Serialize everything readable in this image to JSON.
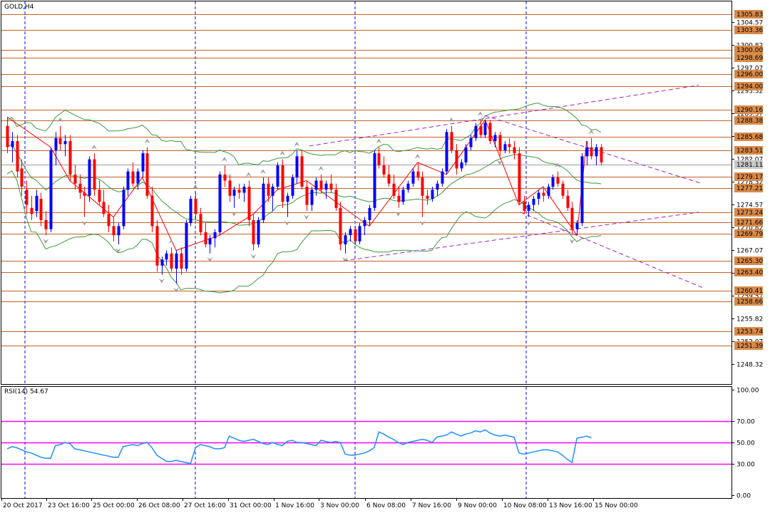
{
  "chart_data": [
    {
      "type": "candlestick",
      "title": "GOLD,H4",
      "ylim": [
        1245,
        1308
      ],
      "y_ticks": [
        "1304.57",
        "1300.82",
        "1297.07",
        "1293.32",
        "1289.57",
        "1285.82",
        "1282.07",
        "1278.32",
        "1274.57",
        "1270.82",
        "1267.07",
        "1263.32",
        "1259.57",
        "1255.82",
        "1252.07",
        "1248.32"
      ],
      "x_ticks": [
        "20 Oct 2017",
        "23 Oct 16:00",
        "25 Oct 00:00",
        "26 Oct 08:00",
        "27 Oct 16:00",
        "31 Oct 00:00",
        "1 Nov 16:00",
        "3 Nov 00:00",
        "6 Nov 08:00",
        "7 Nov 16:00",
        "9 Nov 00:00",
        "10 Nov 08:00",
        "13 Nov 16:00",
        "15 Nov 00:00"
      ],
      "horizontal_levels": [
        "1305.83",
        "1303.36",
        "1300.00",
        "1298.69",
        "1296.00",
        "1294.00",
        "1290.16",
        "1288.38",
        "1285.68",
        "1283.51",
        "1279.17",
        "1277.21",
        "1273.24",
        "1271.66",
        "1269.79",
        "1265.30",
        "1263.40",
        "1260.41",
        "1258.66",
        "1253.74",
        "1251.39"
      ],
      "current_price": "1281.11",
      "colors": {
        "bull": "#0000ff",
        "bear": "#ff0000",
        "level": "#c0622a",
        "bollinger": "#3a9a3a",
        "zigzag": "#ff0000",
        "channel": "#a020c0",
        "separator": "#0000ff"
      },
      "candles_ohlc": [
        [
          1287.5,
          1289.0,
          1283.0,
          1284.0
        ],
        [
          1284.0,
          1286.5,
          1281.5,
          1285.0
        ],
        [
          1285.0,
          1286.0,
          1279.0,
          1280.0
        ],
        [
          1280.5,
          1282.0,
          1276.0,
          1277.5
        ],
        [
          1277.0,
          1278.5,
          1273.0,
          1274.5
        ],
        [
          1274.0,
          1276.0,
          1272.0,
          1273.0
        ],
        [
          1273.5,
          1277.0,
          1272.5,
          1276.0
        ],
        [
          1275.5,
          1276.5,
          1271.0,
          1272.0
        ],
        [
          1272.0,
          1273.5,
          1269.5,
          1270.5
        ],
        [
          1270.5,
          1284.0,
          1270.0,
          1283.5
        ],
        [
          1283.5,
          1286.5,
          1281.0,
          1285.5
        ],
        [
          1285.5,
          1287.5,
          1283.5,
          1284.5
        ],
        [
          1284.5,
          1286.0,
          1282.5,
          1285.0
        ],
        [
          1285.0,
          1286.0,
          1278.5,
          1279.5
        ],
        [
          1279.5,
          1281.0,
          1277.0,
          1278.0
        ],
        [
          1278.0,
          1279.5,
          1275.5,
          1276.5
        ],
        [
          1276.5,
          1277.5,
          1272.5,
          1276.0
        ],
        [
          1276.0,
          1282.5,
          1275.0,
          1282.0
        ],
        [
          1282.0,
          1283.0,
          1276.0,
          1277.0
        ],
        [
          1277.0,
          1278.5,
          1274.5,
          1275.0
        ],
        [
          1275.0,
          1277.0,
          1272.5,
          1273.0
        ],
        [
          1273.0,
          1274.5,
          1270.0,
          1271.0
        ],
        [
          1271.0,
          1272.5,
          1268.5,
          1269.5
        ],
        [
          1269.5,
          1271.5,
          1268.0,
          1271.0
        ],
        [
          1271.0,
          1277.5,
          1270.5,
          1277.0
        ],
        [
          1277.0,
          1280.5,
          1276.0,
          1280.0
        ],
        [
          1280.0,
          1281.5,
          1277.5,
          1278.0
        ],
        [
          1278.0,
          1280.5,
          1277.0,
          1280.0
        ],
        [
          1280.0,
          1283.5,
          1279.0,
          1283.0
        ],
        [
          1283.0,
          1284.0,
          1275.5,
          1276.0
        ],
        [
          1276.0,
          1277.5,
          1270.0,
          1271.0
        ],
        [
          1271.0,
          1272.0,
          1263.5,
          1264.5
        ],
        [
          1264.5,
          1266.0,
          1263.0,
          1265.5
        ],
        [
          1265.5,
          1267.0,
          1264.5,
          1266.5
        ],
        [
          1266.5,
          1267.5,
          1263.5,
          1264.0
        ],
        [
          1264.0,
          1267.0,
          1261.5,
          1266.5
        ],
        [
          1266.5,
          1267.5,
          1263.0,
          1264.0
        ],
        [
          1264.0,
          1272.0,
          1263.5,
          1271.5
        ],
        [
          1271.5,
          1276.0,
          1271.0,
          1275.5
        ],
        [
          1275.5,
          1276.5,
          1272.0,
          1273.0
        ],
        [
          1273.0,
          1274.0,
          1269.5,
          1270.0
        ],
        [
          1270.0,
          1271.5,
          1267.5,
          1268.0
        ],
        [
          1268.0,
          1269.5,
          1266.5,
          1269.0
        ],
        [
          1269.0,
          1270.5,
          1267.5,
          1270.0
        ],
        [
          1270.0,
          1280.0,
          1269.5,
          1279.5
        ],
        [
          1279.5,
          1281.0,
          1277.5,
          1278.5
        ],
        [
          1278.5,
          1279.5,
          1275.0,
          1276.0
        ],
        [
          1276.0,
          1277.5,
          1274.0,
          1277.0
        ],
        [
          1277.0,
          1278.0,
          1275.5,
          1276.5
        ],
        [
          1276.5,
          1278.0,
          1275.0,
          1277.5
        ],
        [
          1277.5,
          1278.5,
          1271.0,
          1272.0
        ],
        [
          1272.0,
          1273.0,
          1267.0,
          1268.0
        ],
        [
          1268.0,
          1272.5,
          1267.5,
          1272.0
        ],
        [
          1272.0,
          1279.0,
          1271.5,
          1278.0
        ],
        [
          1278.0,
          1279.0,
          1275.0,
          1276.0
        ],
        [
          1276.0,
          1278.0,
          1273.5,
          1277.5
        ],
        [
          1277.5,
          1281.5,
          1277.0,
          1281.0
        ],
        [
          1281.0,
          1282.0,
          1274.0,
          1275.0
        ],
        [
          1275.0,
          1276.5,
          1272.5,
          1276.0
        ],
        [
          1276.0,
          1279.5,
          1275.5,
          1279.0
        ],
        [
          1279.0,
          1283.5,
          1278.0,
          1282.5
        ],
        [
          1282.5,
          1283.5,
          1277.0,
          1277.5
        ],
        [
          1277.5,
          1278.5,
          1273.5,
          1274.5
        ],
        [
          1274.5,
          1277.5,
          1273.5,
          1277.0
        ],
        [
          1277.0,
          1279.0,
          1276.0,
          1278.5
        ],
        [
          1278.5,
          1279.5,
          1276.5,
          1277.0
        ],
        [
          1277.0,
          1278.5,
          1275.5,
          1278.0
        ],
        [
          1278.0,
          1279.5,
          1276.5,
          1277.0
        ],
        [
          1277.0,
          1278.0,
          1273.5,
          1274.0
        ],
        [
          1274.0,
          1275.0,
          1267.0,
          1268.0
        ],
        [
          1268.0,
          1270.0,
          1266.5,
          1269.5
        ],
        [
          1269.5,
          1271.0,
          1268.5,
          1270.5
        ],
        [
          1270.5,
          1271.0,
          1268.0,
          1268.5
        ],
        [
          1268.5,
          1271.5,
          1268.0,
          1271.0
        ],
        [
          1271.0,
          1272.5,
          1269.5,
          1272.0
        ],
        [
          1272.0,
          1274.5,
          1271.0,
          1274.0
        ],
        [
          1274.0,
          1283.5,
          1273.5,
          1283.0
        ],
        [
          1283.0,
          1284.0,
          1280.5,
          1281.0
        ],
        [
          1281.0,
          1282.5,
          1279.0,
          1279.5
        ],
        [
          1279.5,
          1281.0,
          1277.5,
          1278.0
        ],
        [
          1278.0,
          1279.5,
          1275.5,
          1276.0
        ],
        [
          1276.0,
          1277.5,
          1274.0,
          1275.0
        ],
        [
          1275.0,
          1277.5,
          1274.5,
          1277.0
        ],
        [
          1277.0,
          1278.5,
          1276.5,
          1278.0
        ],
        [
          1278.0,
          1280.5,
          1277.5,
          1280.0
        ],
        [
          1280.0,
          1281.5,
          1278.5,
          1279.0
        ],
        [
          1279.0,
          1280.0,
          1272.5,
          1276.0
        ],
        [
          1276.0,
          1277.0,
          1274.5,
          1275.5
        ],
        [
          1275.5,
          1277.5,
          1275.0,
          1277.0
        ],
        [
          1277.0,
          1278.5,
          1276.0,
          1278.0
        ],
        [
          1278.0,
          1280.5,
          1277.5,
          1280.0
        ],
        [
          1280.0,
          1287.0,
          1279.5,
          1286.5
        ],
        [
          1286.5,
          1287.5,
          1283.0,
          1283.5
        ],
        [
          1283.5,
          1284.5,
          1279.5,
          1280.5
        ],
        [
          1280.5,
          1282.0,
          1280.0,
          1281.5
        ],
        [
          1281.5,
          1284.5,
          1281.0,
          1284.0
        ],
        [
          1284.0,
          1286.0,
          1283.5,
          1285.5
        ],
        [
          1285.5,
          1288.0,
          1285.0,
          1287.5
        ],
        [
          1287.5,
          1288.5,
          1285.5,
          1286.0
        ],
        [
          1286.0,
          1288.5,
          1285.5,
          1288.0
        ],
        [
          1288.0,
          1288.5,
          1284.5,
          1285.0
        ],
        [
          1285.0,
          1286.5,
          1284.0,
          1286.0
        ],
        [
          1286.0,
          1286.5,
          1282.5,
          1283.5
        ],
        [
          1283.5,
          1285.0,
          1283.0,
          1284.5
        ],
        [
          1284.5,
          1285.5,
          1283.0,
          1284.0
        ],
        [
          1284.0,
          1285.0,
          1282.0,
          1283.0
        ],
        [
          1283.0,
          1284.0,
          1274.5,
          1275.0
        ],
        [
          1275.0,
          1276.0,
          1273.0,
          1273.5
        ],
        [
          1273.5,
          1275.0,
          1272.5,
          1274.5
        ],
        [
          1274.5,
          1276.0,
          1273.5,
          1275.5
        ],
        [
          1275.5,
          1277.0,
          1274.5,
          1276.5
        ],
        [
          1276.5,
          1277.5,
          1275.0,
          1276.0
        ],
        [
          1276.0,
          1278.0,
          1275.5,
          1277.5
        ],
        [
          1277.5,
          1279.5,
          1277.0,
          1279.0
        ],
        [
          1279.0,
          1280.0,
          1277.5,
          1278.0
        ],
        [
          1278.0,
          1278.5,
          1275.5,
          1276.0
        ],
        [
          1276.0,
          1277.0,
          1273.5,
          1274.0
        ],
        [
          1274.0,
          1275.0,
          1269.5,
          1270.5
        ],
        [
          1270.5,
          1272.0,
          1269.5,
          1271.5
        ],
        [
          1271.5,
          1283.0,
          1271.0,
          1282.5
        ],
        [
          1282.5,
          1285.0,
          1281.0,
          1284.0
        ],
        [
          1284.0,
          1285.5,
          1282.0,
          1282.5
        ],
        [
          1282.5,
          1284.5,
          1281.0,
          1284.0
        ],
        [
          1284.0,
          1284.5,
          1281.0,
          1281.5
        ]
      ]
    },
    {
      "type": "line",
      "title": "RSI(14) 54.67",
      "ylim": [
        0,
        100
      ],
      "y_ticks": [
        "100.00",
        "70.00",
        "50.00",
        "30.00",
        "0.00"
      ],
      "levels": [
        70,
        50,
        30
      ],
      "series": [
        {
          "values": [
            44,
            46,
            45,
            43,
            41,
            40,
            38,
            36,
            35,
            35,
            47,
            48,
            50,
            49,
            44,
            43,
            42,
            41,
            40,
            39,
            38,
            37,
            36,
            36,
            46,
            47,
            48,
            47,
            49,
            50,
            45,
            38,
            35,
            32,
            32,
            33,
            32,
            31,
            30,
            45,
            48,
            47,
            46,
            44,
            44,
            45,
            56,
            54,
            52,
            51,
            52,
            53,
            51,
            49,
            48,
            50,
            48,
            47,
            51,
            52,
            50,
            50,
            49,
            48,
            47,
            52,
            51,
            50,
            51,
            50,
            39,
            38,
            38,
            39,
            40,
            42,
            45,
            60,
            58,
            55,
            53,
            50,
            48,
            50,
            51,
            52,
            53,
            52,
            50,
            55,
            56,
            57,
            60,
            58,
            56,
            58,
            59,
            61,
            60,
            62,
            59,
            57,
            56,
            57,
            56,
            55,
            40,
            39,
            40,
            41,
            42,
            43,
            43,
            42,
            41,
            38,
            34,
            31,
            54,
            55,
            56,
            54.67
          ]
        }
      ]
    }
  ]
}
